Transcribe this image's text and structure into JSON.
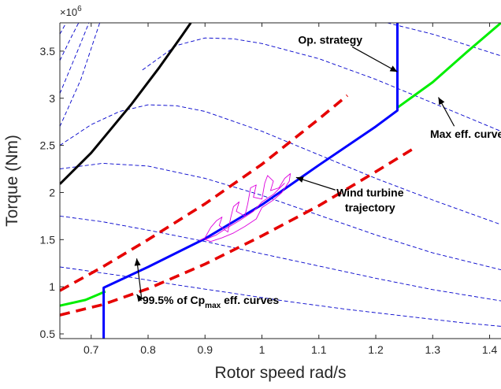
{
  "chart_data": {
    "type": "line",
    "title": "",
    "xlabel": "Rotor speed rad/s",
    "ylabel": "Torque (Nm)",
    "xlim": [
      0.645,
      1.42
    ],
    "ylim": [
      0.45,
      3.8
    ],
    "y_multiplier_label": "×10",
    "y_multiplier_exponent": "6",
    "grid": false,
    "x_ticks": [
      0.7,
      0.8,
      0.9,
      1.0,
      1.1,
      1.2,
      1.3,
      1.4
    ],
    "x_tick_labels": [
      "0.7",
      "0.8",
      "0.9",
      "1",
      "1.1",
      "1.2",
      "1.3",
      "1.4"
    ],
    "y_ticks": [
      0.5,
      1.0,
      1.5,
      2.0,
      2.5,
      3.0,
      3.5
    ],
    "y_tick_labels": [
      "0.5",
      "1",
      "1.5",
      "2",
      "2.5",
      "3",
      "3.5"
    ],
    "series": [
      {
        "style": "blue-dashed-thin",
        "color": "#0000cc",
        "points": [
          [
            0.645,
            2.25
          ],
          [
            0.72,
            2.31
          ],
          [
            0.8,
            2.28
          ],
          [
            0.9,
            2.15
          ],
          [
            1.0,
            1.97
          ],
          [
            1.1,
            1.76
          ],
          [
            1.2,
            1.55
          ],
          [
            1.3,
            1.36
          ],
          [
            1.42,
            1.18
          ]
        ]
      },
      {
        "style": "blue-dashed-thin",
        "color": "#0000cc",
        "points": [
          [
            0.645,
            1.75
          ],
          [
            0.72,
            1.69
          ],
          [
            0.8,
            1.6
          ],
          [
            0.9,
            1.48
          ],
          [
            1.0,
            1.35
          ],
          [
            1.1,
            1.22
          ],
          [
            1.2,
            1.09
          ],
          [
            1.3,
            0.97
          ],
          [
            1.42,
            0.85
          ]
        ]
      },
      {
        "style": "blue-dashed-thin",
        "color": "#0000cc",
        "points": [
          [
            0.645,
            1.21
          ],
          [
            0.75,
            1.12
          ],
          [
            0.85,
            1.02
          ],
          [
            0.95,
            0.93
          ],
          [
            1.05,
            0.84
          ],
          [
            1.15,
            0.76
          ],
          [
            1.25,
            0.69
          ],
          [
            1.35,
            0.62
          ],
          [
            1.42,
            0.58
          ]
        ]
      },
      {
        "style": "blue-dashed-thin",
        "color": "#0000cc",
        "points": [
          [
            0.645,
            2.5
          ],
          [
            0.7,
            2.72
          ],
          [
            0.75,
            2.86
          ],
          [
            0.8,
            2.93
          ],
          [
            0.85,
            2.92
          ],
          [
            0.9,
            2.86
          ],
          [
            1.0,
            2.65
          ],
          [
            1.1,
            2.4
          ],
          [
            1.2,
            2.15
          ],
          [
            1.3,
            1.92
          ],
          [
            1.42,
            1.66
          ]
        ]
      },
      {
        "style": "blue-dashed-thin",
        "color": "#0000cc",
        "points": [
          [
            0.79,
            3.3
          ],
          [
            0.85,
            3.56
          ],
          [
            0.9,
            3.64
          ],
          [
            0.95,
            3.63
          ],
          [
            1.0,
            3.58
          ],
          [
            1.1,
            3.42
          ],
          [
            1.2,
            3.2
          ],
          [
            1.3,
            2.95
          ],
          [
            1.42,
            2.65
          ]
        ]
      },
      {
        "style": "blue-dashed-thin",
        "color": "#0000cc",
        "points": [
          [
            1.22,
            3.8
          ],
          [
            1.3,
            3.68
          ],
          [
            1.42,
            3.45
          ]
        ]
      },
      {
        "style": "blue-dashed-thin",
        "color": "#0000cc",
        "points": [
          [
            0.645,
            2.7
          ],
          [
            0.682,
            3.2
          ],
          [
            0.715,
            3.8
          ]
        ]
      },
      {
        "style": "blue-dashed-thin",
        "color": "#0000cc",
        "points": [
          [
            0.645,
            3.05
          ],
          [
            0.676,
            3.5
          ],
          [
            0.696,
            3.8
          ]
        ]
      },
      {
        "style": "blue-dashed-thin",
        "color": "#0000cc",
        "points": [
          [
            0.645,
            3.4
          ],
          [
            0.665,
            3.65
          ],
          [
            0.678,
            3.8
          ]
        ]
      },
      {
        "style": "blue-dashed-thin",
        "color": "#0000cc",
        "points": [
          [
            0.645,
            3.68
          ],
          [
            0.656,
            3.8
          ]
        ]
      },
      {
        "style": "black-solid",
        "color": "#000000",
        "points": [
          [
            0.645,
            2.09
          ],
          [
            0.7,
            2.42
          ],
          [
            0.77,
            2.93
          ],
          [
            0.82,
            3.33
          ],
          [
            0.86,
            3.67
          ],
          [
            0.875,
            3.8
          ]
        ]
      },
      {
        "style": "red-dashed",
        "color": "#e60000",
        "points": [
          [
            0.645,
            0.96
          ],
          [
            0.72,
            1.21
          ],
          [
            0.8,
            1.5
          ],
          [
            0.9,
            1.88
          ],
          [
            1.0,
            2.3
          ],
          [
            1.1,
            2.78
          ],
          [
            1.15,
            3.03
          ]
        ]
      },
      {
        "style": "red-dashed",
        "color": "#e60000",
        "points": [
          [
            0.645,
            0.7
          ],
          [
            0.72,
            0.81
          ],
          [
            0.8,
            0.98
          ],
          [
            0.9,
            1.24
          ],
          [
            1.0,
            1.54
          ],
          [
            1.1,
            1.86
          ],
          [
            1.2,
            2.22
          ],
          [
            1.27,
            2.48
          ]
        ]
      },
      {
        "style": "green-solid",
        "color": "#00ee00",
        "points": [
          [
            0.645,
            0.8
          ],
          [
            0.69,
            0.86
          ],
          [
            0.725,
            0.95
          ]
        ]
      },
      {
        "style": "green-solid",
        "color": "#00ee00",
        "points": [
          [
            1.238,
            2.9
          ],
          [
            1.3,
            3.17
          ],
          [
            1.36,
            3.49
          ],
          [
            1.42,
            3.8
          ]
        ]
      },
      {
        "style": "blue-solid",
        "color": "#0000ff",
        "points": [
          [
            0.722,
            0.45
          ],
          [
            0.722,
            0.99
          ],
          [
            0.8,
            1.21
          ],
          [
            0.9,
            1.51
          ],
          [
            1.0,
            1.87
          ],
          [
            1.1,
            2.29
          ],
          [
            1.2,
            2.7
          ],
          [
            1.238,
            2.87
          ],
          [
            1.238,
            3.8
          ]
        ]
      },
      {
        "style": "magenta-thin",
        "color": "#dd00dd",
        "points": [
          [
            0.89,
            1.49
          ],
          [
            0.9,
            1.52
          ],
          [
            0.91,
            1.63
          ],
          [
            0.92,
            1.7
          ],
          [
            0.93,
            1.74
          ],
          [
            0.925,
            1.65
          ],
          [
            0.94,
            1.58
          ],
          [
            0.945,
            1.73
          ],
          [
            0.95,
            1.85
          ],
          [
            0.96,
            1.9
          ],
          [
            0.955,
            1.8
          ],
          [
            0.97,
            1.75
          ],
          [
            0.975,
            1.88
          ],
          [
            0.98,
            2.05
          ],
          [
            0.99,
            2.08
          ],
          [
            0.985,
            1.95
          ],
          [
            1.0,
            1.93
          ],
          [
            1.005,
            2.1
          ],
          [
            1.01,
            2.18
          ],
          [
            1.02,
            2.12
          ],
          [
            1.015,
            2.02
          ],
          [
            1.03,
            2.05
          ],
          [
            1.04,
            2.15
          ],
          [
            1.05,
            2.2
          ],
          [
            1.048,
            2.12
          ],
          [
            1.035,
            2.0
          ],
          [
            1.02,
            1.92
          ],
          [
            1.0,
            1.84
          ],
          [
            0.99,
            1.72
          ],
          [
            0.97,
            1.64
          ],
          [
            0.95,
            1.57
          ],
          [
            0.93,
            1.52
          ],
          [
            0.91,
            1.48
          ],
          [
            0.9,
            1.5
          ],
          [
            0.92,
            1.55
          ],
          [
            0.94,
            1.63
          ],
          [
            0.96,
            1.7
          ],
          [
            0.985,
            1.8
          ],
          [
            1.0,
            1.9
          ],
          [
            1.02,
            1.98
          ],
          [
            1.04,
            2.1
          ]
        ]
      }
    ],
    "annotations": [
      {
        "text": "Op. strategy",
        "xy": [
          1.238,
          3.28
        ],
        "xytext": [
          1.12,
          3.62
        ]
      },
      {
        "text": "Max eff. curve",
        "xy": [
          1.31,
          3.01
        ],
        "xytext": [
          1.36,
          2.62
        ]
      },
      {
        "text": "Wind turbine",
        "text2": "trajectory",
        "xy": [
          1.06,
          2.16
        ],
        "xytext": [
          1.19,
          1.96
        ]
      },
      {
        "text": "99.5% of Cp",
        "sub": "max",
        "suffix": " eff. curves",
        "xy": [
          0.78,
          1.3
        ],
        "xytext": [
          0.91,
          0.86
        ],
        "xy2": [
          0.78,
          0.92
        ]
      }
    ]
  }
}
